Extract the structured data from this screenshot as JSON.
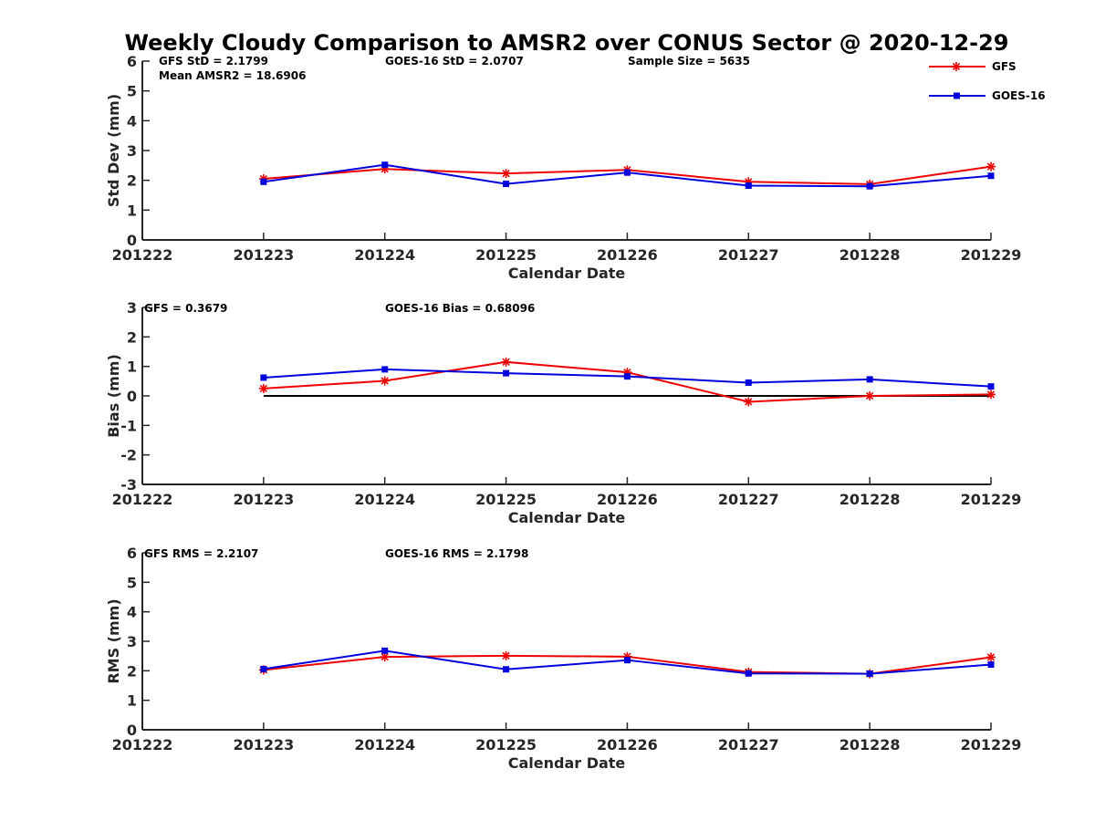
{
  "title": "Weekly Cloudy Comparison to AMSR2 over CONUS Sector @ 2020-12-29",
  "colors": {
    "GFS": "#ee0000",
    "GOES-16": "#0000dd",
    "zero_line": "#000000"
  },
  "legend": [
    {
      "name": "GFS",
      "marker": "asterisk"
    },
    {
      "name": "GOES-16",
      "marker": "square"
    }
  ],
  "chart_data": [
    {
      "type": "line",
      "xlabel": "Calendar Date",
      "ylabel": "Std Dev (mm)",
      "x_ticks": [
        "201222",
        "201223",
        "201224",
        "201225",
        "201226",
        "201227",
        "201228",
        "201229"
      ],
      "ylim": [
        0,
        6
      ],
      "y_ticks": [
        "0",
        "1",
        "2",
        "3",
        "4",
        "5",
        "6"
      ],
      "notes": [
        "GFS StD = 2.1799",
        "GOES-16 StD = 2.0707",
        "Sample Size = 5635",
        "Mean AMSR2 = 18.6906"
      ],
      "zero_line": false,
      "categories": [
        "201223",
        "201224",
        "201225",
        "201226",
        "201227",
        "201228",
        "201229"
      ],
      "series": [
        {
          "name": "GFS",
          "values": [
            2.05,
            2.38,
            2.23,
            2.35,
            1.95,
            1.87,
            2.46
          ]
        },
        {
          "name": "GOES-16",
          "values": [
            1.95,
            2.52,
            1.88,
            2.26,
            1.82,
            1.8,
            2.15
          ]
        }
      ]
    },
    {
      "type": "line",
      "xlabel": "Calendar Date",
      "ylabel": "Bias (mm)",
      "x_ticks": [
        "201222",
        "201223",
        "201224",
        "201225",
        "201226",
        "201227",
        "201228",
        "201229"
      ],
      "ylim": [
        -3,
        3
      ],
      "y_ticks": [
        "-3",
        "-2",
        "-1",
        "0",
        "1",
        "2",
        "3"
      ],
      "notes": [
        "GFS = 0.3679",
        "GOES-16 Bias  = 0.68096"
      ],
      "zero_line": true,
      "categories": [
        "201223",
        "201224",
        "201225",
        "201226",
        "201227",
        "201228",
        "201229"
      ],
      "series": [
        {
          "name": "GFS",
          "values": [
            0.25,
            0.51,
            1.15,
            0.8,
            -0.2,
            0.0,
            0.05
          ]
        },
        {
          "name": "GOES-16",
          "values": [
            0.62,
            0.9,
            0.77,
            0.66,
            0.45,
            0.56,
            0.32
          ]
        }
      ]
    },
    {
      "type": "line",
      "xlabel": "Calendar Date",
      "ylabel": "RMS (mm)",
      "x_ticks": [
        "201222",
        "201223",
        "201224",
        "201225",
        "201226",
        "201227",
        "201228",
        "201229"
      ],
      "ylim": [
        0,
        6
      ],
      "y_ticks": [
        "0",
        "1",
        "2",
        "3",
        "4",
        "5",
        "6"
      ],
      "notes": [
        "GFS RMS = 2.2107",
        "GOES-16 RMS = 2.1798"
      ],
      "zero_line": false,
      "categories": [
        "201223",
        "201224",
        "201225",
        "201226",
        "201227",
        "201228",
        "201229"
      ],
      "series": [
        {
          "name": "GFS",
          "values": [
            2.03,
            2.47,
            2.51,
            2.48,
            1.96,
            1.9,
            2.46
          ]
        },
        {
          "name": "GOES-16",
          "values": [
            2.06,
            2.68,
            2.05,
            2.36,
            1.91,
            1.9,
            2.21
          ]
        }
      ]
    }
  ]
}
